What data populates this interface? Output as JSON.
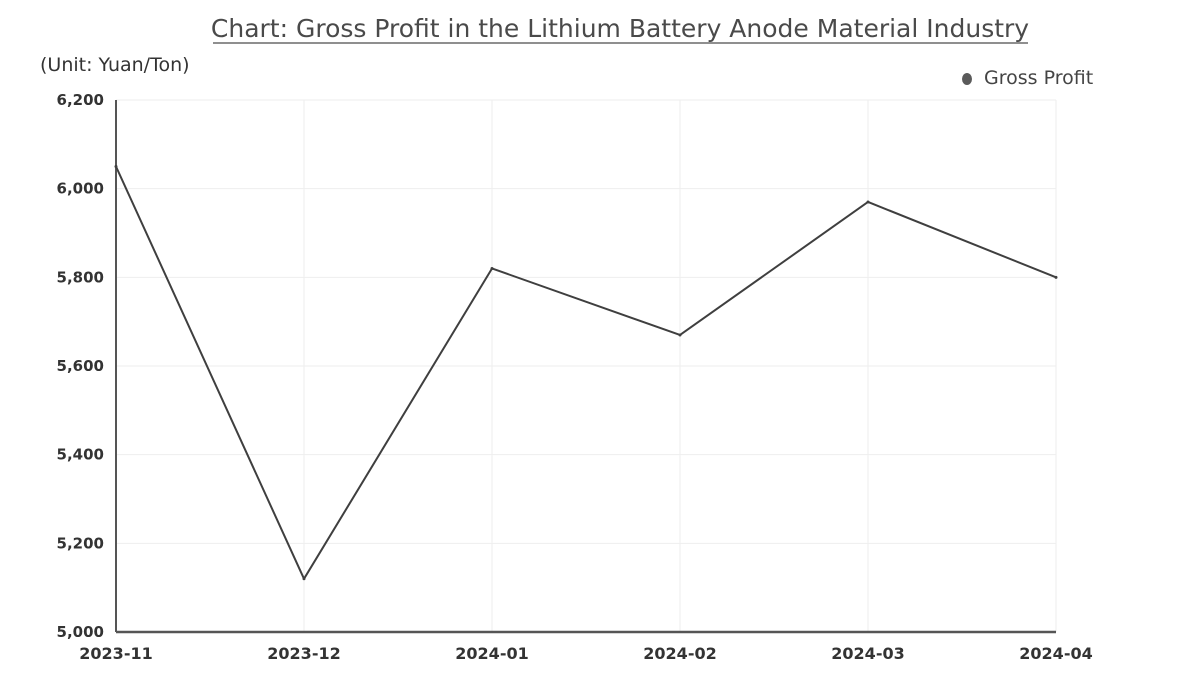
{
  "chart_data": {
    "type": "line",
    "title": "Chart: Gross Profit in the Lithium Battery Anode Material Industry",
    "unit": "(Unit: Yuan/Ton)",
    "xlabel": "",
    "ylabel": "",
    "x": [
      "2023-11",
      "2023-12",
      "2024-01",
      "2024-02",
      "2024-03",
      "2024-04"
    ],
    "series": [
      {
        "name": "Gross Profit",
        "values": [
          6050,
          5120,
          5820,
          5670,
          5970,
          5800
        ]
      }
    ],
    "yticks": [
      "5,000",
      "5,200",
      "5,400",
      "5,600",
      "5,800",
      "6,000",
      "6,200"
    ],
    "ylim": [
      5000,
      6200
    ],
    "grid": true,
    "legend_position": "top-right",
    "colors": {
      "line": "#3f3f3f",
      "axis": "#555555",
      "grid": "#eeeeee",
      "legend_marker": "#5a5a5a"
    }
  }
}
